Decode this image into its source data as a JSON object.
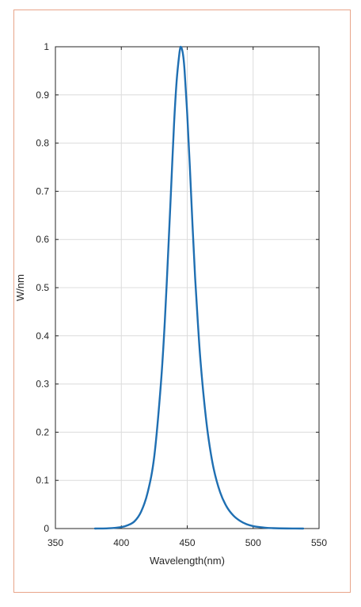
{
  "chart_data": {
    "type": "line",
    "title": "",
    "xlabel": "Wavelength(nm)",
    "ylabel": "W/nm",
    "xlim": [
      350,
      550
    ],
    "ylim": [
      0,
      1
    ],
    "xticks": [
      "350",
      "400",
      "450",
      "500",
      "550"
    ],
    "yticks": [
      "0",
      "0.1",
      "0.2",
      "0.3",
      "0.4",
      "0.5",
      "0.6",
      "0.7",
      "0.8",
      "0.9",
      "1"
    ],
    "grid": true,
    "line_color": "#1f6fb2",
    "series": [
      {
        "x": [
          380,
          390,
          400,
          405,
          410,
          415,
          420,
          425,
          430,
          433,
          436,
          438,
          440,
          442,
          444,
          445,
          446,
          447,
          448,
          450,
          452,
          454,
          456,
          458,
          460,
          463,
          466,
          470,
          475,
          480,
          485,
          490,
          495,
          500,
          505,
          510,
          515,
          520,
          530,
          538
        ],
        "y": [
          0,
          0.0005,
          0.003,
          0.007,
          0.015,
          0.035,
          0.075,
          0.15,
          0.3,
          0.43,
          0.6,
          0.72,
          0.84,
          0.93,
          0.985,
          1.0,
          0.995,
          0.98,
          0.95,
          0.86,
          0.75,
          0.63,
          0.52,
          0.43,
          0.35,
          0.26,
          0.19,
          0.125,
          0.075,
          0.045,
          0.027,
          0.016,
          0.009,
          0.005,
          0.003,
          0.0015,
          0.0008,
          0.0004,
          0.0001,
          0
        ]
      }
    ]
  }
}
